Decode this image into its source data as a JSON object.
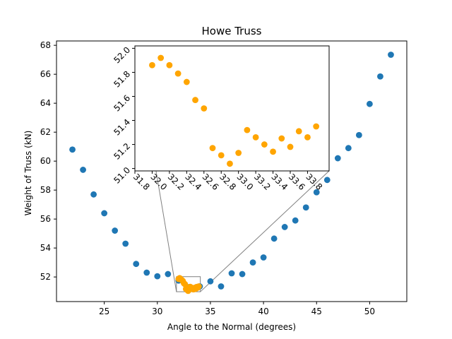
{
  "chart_data": [
    {
      "type": "scatter",
      "title": "Howe Truss",
      "xlabel": "Angle to the Normal (degrees)",
      "ylabel": "Weight of Truss (kN)",
      "xlim": [
        20.5,
        53.5
      ],
      "ylim": [
        50.3,
        68.3
      ],
      "xticks": [
        25,
        30,
        35,
        40,
        45,
        50
      ],
      "yticks": [
        52,
        54,
        56,
        58,
        60,
        62,
        64,
        66,
        68
      ],
      "grid": false,
      "series": [
        {
          "color": "#1f77b4",
          "x": [
            22,
            23,
            24,
            25,
            26,
            27,
            28,
            29,
            30,
            31,
            32,
            33,
            34,
            35,
            36,
            37,
            38,
            39,
            40,
            41,
            42,
            43,
            44,
            45,
            46,
            47,
            48,
            49,
            50,
            51,
            52
          ],
          "y": [
            60.8,
            59.4,
            57.7,
            56.4,
            55.2,
            54.3,
            52.9,
            52.3,
            52.05,
            52.2,
            51.75,
            51.3,
            51.35,
            51.7,
            51.35,
            52.25,
            52.2,
            53.0,
            53.35,
            54.65,
            55.45,
            55.9,
            56.8,
            57.85,
            58.7,
            60.2,
            60.9,
            61.8,
            63.95,
            65.85,
            67.35
          ]
        },
        {
          "color": "#ffa500",
          "x": [
            32.0,
            32.1,
            32.2,
            32.3,
            32.4,
            32.5,
            32.6,
            32.7,
            32.8,
            32.9,
            33.0,
            33.1,
            33.2,
            33.3,
            33.4,
            33.5,
            33.6,
            33.7,
            33.8,
            33.9
          ],
          "y": [
            51.86,
            51.92,
            51.86,
            51.79,
            51.72,
            51.57,
            51.5,
            51.17,
            51.11,
            51.04,
            51.13,
            51.32,
            51.26,
            51.2,
            51.14,
            51.25,
            51.18,
            51.31,
            51.26,
            51.35
          ]
        }
      ]
    },
    {
      "type": "scatter",
      "role": "zoomed inset",
      "xlim": [
        31.8,
        34.05
      ],
      "ylim": [
        50.98,
        52.02
      ],
      "xticks": [
        "31.8",
        "32.0",
        "32.2",
        "32.4",
        "32.6",
        "32.8",
        "33.0",
        "33.2",
        "33.4",
        "33.6",
        "33.8"
      ],
      "yticks": [
        "51.0",
        "51.2",
        "51.4",
        "51.6",
        "51.8",
        "52.0"
      ],
      "grid": false,
      "series": [
        {
          "color": "#ffa500",
          "x": [
            32.0,
            32.1,
            32.2,
            32.3,
            32.4,
            32.5,
            32.6,
            32.7,
            32.8,
            32.9,
            33.0,
            33.1,
            33.2,
            33.3,
            33.4,
            33.5,
            33.6,
            33.7,
            33.8,
            33.9
          ],
          "y": [
            51.86,
            51.92,
            51.86,
            51.79,
            51.72,
            51.57,
            51.5,
            51.17,
            51.11,
            51.04,
            51.13,
            51.32,
            51.26,
            51.2,
            51.14,
            51.25,
            51.18,
            51.31,
            51.26,
            51.35
          ]
        }
      ]
    }
  ]
}
